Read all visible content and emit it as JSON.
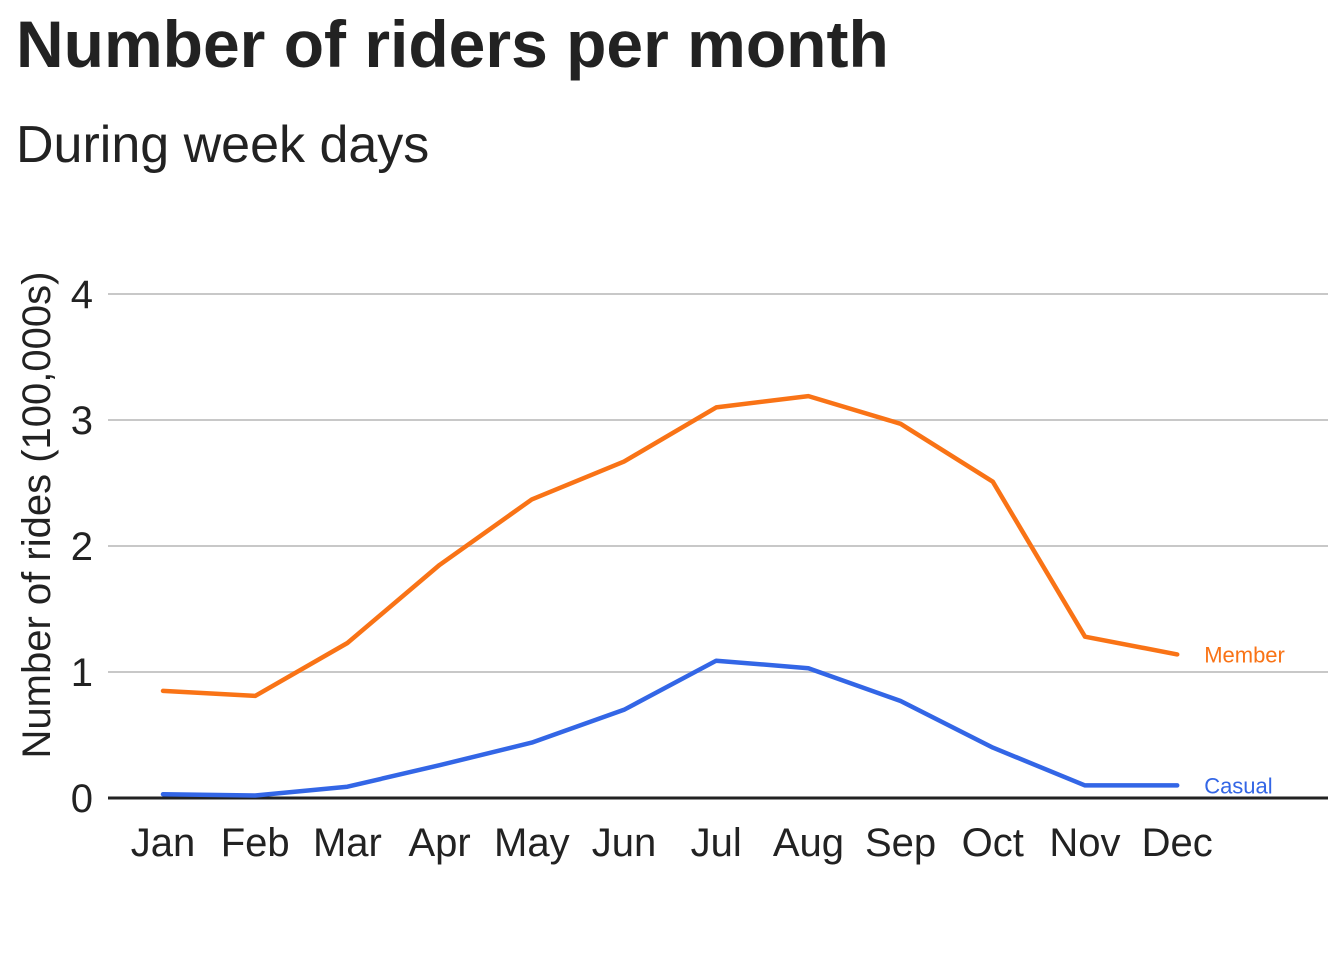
{
  "chart_data": {
    "type": "line",
    "title": "Number of riders per month",
    "subtitle": "During week days",
    "xlabel": "",
    "ylabel": "Number of rides (100,000s)",
    "ylim": [
      0,
      4
    ],
    "yticks": [
      0,
      1,
      2,
      3,
      4
    ],
    "grid": true,
    "legend": "direct labels at line ends",
    "categories": [
      "Jan",
      "Feb",
      "Mar",
      "Apr",
      "May",
      "Jun",
      "Jul",
      "Aug",
      "Sep",
      "Oct",
      "Nov",
      "Dec"
    ],
    "series": [
      {
        "name": "Member",
        "color": "#f97316",
        "values": [
          0.85,
          0.81,
          1.23,
          1.85,
          2.37,
          2.67,
          3.1,
          3.19,
          2.97,
          2.51,
          1.28,
          1.14
        ]
      },
      {
        "name": "Casual",
        "color": "#3366e6",
        "values": [
          0.03,
          0.02,
          0.09,
          0.26,
          0.44,
          0.7,
          1.09,
          1.03,
          0.77,
          0.4,
          0.1,
          0.1
        ]
      }
    ],
    "grid_color": "#c8c8c8",
    "axis_color": "#222222"
  }
}
